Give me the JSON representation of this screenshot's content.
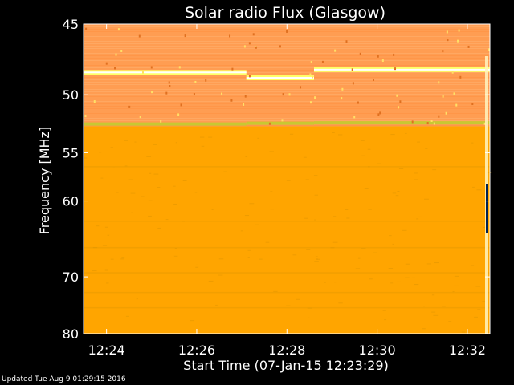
{
  "chart_data": {
    "type": "heatmap",
    "title": "Solar radio Flux (Glasgow)",
    "xlabel": "Start Time (07-Jan-15 12:23:29)",
    "ylabel": "Frequency [MHz]",
    "x_ticks": [
      "12:24",
      "12:26",
      "12:28",
      "12:30",
      "12:32"
    ],
    "x_tick_minutes": [
      24,
      26,
      28,
      30,
      32
    ],
    "xlim_minutes": [
      23.49,
      32.5
    ],
    "y_ticks": [
      45,
      50,
      55,
      60,
      70,
      80
    ],
    "ylim": [
      45,
      80
    ],
    "y_scale": "reciprocal",
    "colors": {
      "background": "#000000",
      "spectrum_base": "#ffa500",
      "noise_band": "#ff9d52",
      "noise_band_light": "#ffb070",
      "bright_line": "#ffff66",
      "bright_line_core": "#ffffff",
      "lower_edge_line": "#c8c832",
      "burst_dark": "#002050"
    },
    "frequency_bands": [
      {
        "from_mhz": 45.0,
        "to_mhz": 52.6,
        "description": "strong interference band"
      },
      {
        "bright_line_mhz": [
          48.3,
          48.7,
          48.1
        ]
      },
      {
        "edge_line_mhz": 52.3
      }
    ],
    "spectrum_steps_minutes": [
      27.1,
      28.6
    ],
    "faint_horizontal_traces_mhz": [
      56.3,
      62.3,
      65.7,
      69.3,
      72.4,
      75.0
    ]
  },
  "footer": {
    "updated": "Updated Tue Aug  9 01:29:15 2016"
  }
}
